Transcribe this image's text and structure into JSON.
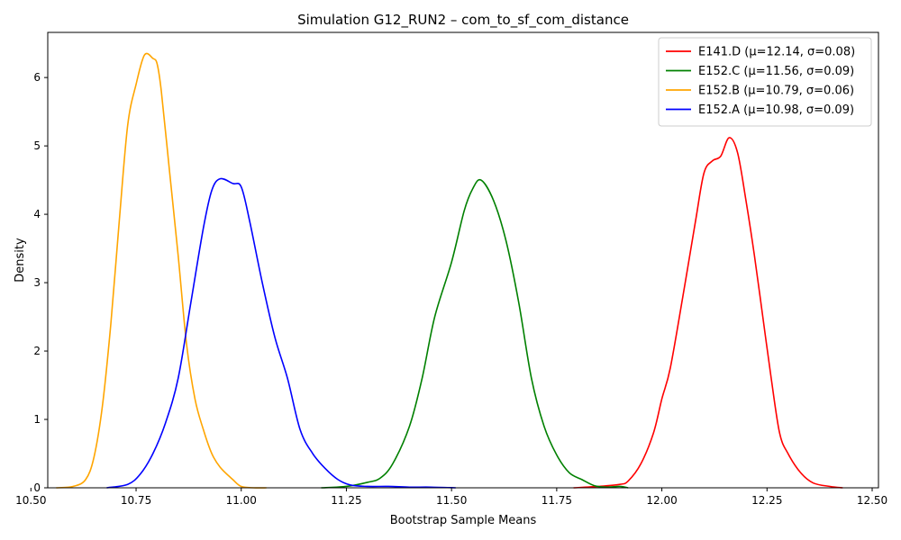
{
  "chart_data": {
    "type": "line",
    "title": "Simulation G12_RUN2 – com_to_sf_com_distance",
    "xlabel": "Bootstrap Sample Means",
    "ylabel": "Density",
    "xlim": [
      10.54,
      12.515
    ],
    "ylim": [
      0,
      6.66
    ],
    "xticks": [
      10.5,
      10.75,
      11.0,
      11.25,
      11.5,
      11.75,
      12.0,
      12.25,
      12.5
    ],
    "xtick_labels": [
      "10.50",
      "10.75",
      "11.00",
      "11.25",
      "11.50",
      "11.75",
      "12.00",
      "12.25",
      "12.50"
    ],
    "yticks": [
      0,
      1,
      2,
      3,
      4,
      5,
      6
    ],
    "ytick_labels": [
      "0",
      "1",
      "2",
      "3",
      "4",
      "5",
      "6"
    ],
    "grid": false,
    "legend_position": "top-right",
    "series": [
      {
        "name": "E141.D (μ=12.14, σ=0.08)",
        "color": "#ff0000",
        "x": [
          11.79,
          11.85,
          11.9,
          11.92,
          11.95,
          11.98,
          12.0,
          12.02,
          12.05,
          12.08,
          12.1,
          12.12,
          12.14,
          12.16,
          12.18,
          12.2,
          12.22,
          12.24,
          12.26,
          12.28,
          12.3,
          12.33,
          12.36,
          12.4,
          12.43
        ],
        "values": [
          0.0,
          0.02,
          0.05,
          0.1,
          0.35,
          0.8,
          1.3,
          1.75,
          2.8,
          3.9,
          4.6,
          4.78,
          4.85,
          5.12,
          4.9,
          4.2,
          3.4,
          2.5,
          1.6,
          0.8,
          0.5,
          0.22,
          0.07,
          0.02,
          0.0
        ]
      },
      {
        "name": "E152.C (μ=11.56, σ=0.09)",
        "color": "#008000",
        "x": [
          11.19,
          11.25,
          11.3,
          11.33,
          11.36,
          11.4,
          11.43,
          11.46,
          11.5,
          11.53,
          11.55,
          11.57,
          11.6,
          11.63,
          11.66,
          11.69,
          11.72,
          11.75,
          11.78,
          11.81,
          11.84,
          11.87,
          11.9,
          11.92
        ],
        "values": [
          0.0,
          0.02,
          0.08,
          0.14,
          0.35,
          0.9,
          1.6,
          2.5,
          3.3,
          4.05,
          4.37,
          4.5,
          4.2,
          3.6,
          2.7,
          1.6,
          0.9,
          0.48,
          0.22,
          0.12,
          0.03,
          0.01,
          0.02,
          0.0
        ]
      },
      {
        "name": "E152.B (μ=10.79, σ=0.06)",
        "color": "#ffa500",
        "x": [
          10.56,
          10.6,
          10.63,
          10.65,
          10.67,
          10.69,
          10.71,
          10.73,
          10.75,
          10.77,
          10.79,
          10.8,
          10.81,
          10.83,
          10.85,
          10.87,
          10.89,
          10.91,
          10.93,
          10.95,
          10.98,
          11.0,
          11.03,
          11.06
        ],
        "values": [
          0.0,
          0.02,
          0.12,
          0.45,
          1.2,
          2.4,
          3.9,
          5.3,
          5.9,
          6.33,
          6.28,
          6.2,
          5.8,
          4.6,
          3.4,
          2.1,
          1.3,
          0.85,
          0.5,
          0.3,
          0.12,
          0.02,
          0.0,
          0.0
        ]
      },
      {
        "name": "E152.A (μ=10.98, σ=0.09)",
        "color": "#0000ff",
        "x": [
          10.68,
          10.73,
          10.76,
          10.79,
          10.82,
          10.85,
          10.88,
          10.91,
          10.93,
          10.95,
          10.98,
          11.0,
          11.02,
          11.05,
          11.08,
          11.11,
          11.14,
          11.17,
          11.2,
          11.23,
          11.26,
          11.3,
          11.35,
          11.4,
          11.45,
          11.51
        ],
        "values": [
          0.0,
          0.05,
          0.2,
          0.5,
          0.95,
          1.6,
          2.7,
          3.8,
          4.35,
          4.52,
          4.45,
          4.4,
          3.9,
          3.0,
          2.2,
          1.6,
          0.85,
          0.5,
          0.28,
          0.12,
          0.04,
          0.02,
          0.02,
          0.01,
          0.01,
          0.0
        ]
      }
    ]
  }
}
